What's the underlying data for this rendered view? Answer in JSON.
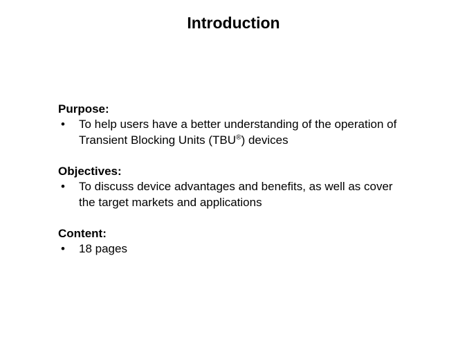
{
  "title": "Introduction",
  "sections": {
    "purpose": {
      "heading": "Purpose:",
      "item_pre": "To help users have a better understanding of the operation of Transient Blocking Units (TBU",
      "item_sup": "®",
      "item_post": ") devices"
    },
    "objectives": {
      "heading": "Objectives:",
      "item": "To discuss device advantages and benefits, as well as cover the target markets and applications"
    },
    "content": {
      "heading": "Content:",
      "item": "18 pages"
    }
  }
}
